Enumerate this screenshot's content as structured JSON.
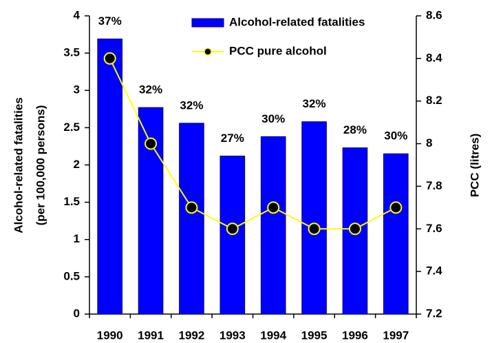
{
  "chart_data": {
    "type": "bar",
    "categories": [
      "1990",
      "1991",
      "1992",
      "1993",
      "1994",
      "1995",
      "1996",
      "1997"
    ],
    "series": [
      {
        "name": "Alcohol-related fatalities",
        "type": "bar",
        "color": "#0000ff",
        "values": [
          3.69,
          2.77,
          2.56,
          2.12,
          2.38,
          2.58,
          2.23,
          2.15
        ],
        "bar_labels": [
          "37%",
          "32%",
          "32%",
          "27%",
          "30%",
          "32%",
          "28%",
          "30%"
        ]
      },
      {
        "name": "PCC pure alcohol",
        "type": "line",
        "color": "#ffff00",
        "axis": "y2",
        "values": [
          8.4,
          8.0,
          7.7,
          7.6,
          7.7,
          7.6,
          7.6,
          7.7
        ]
      }
    ],
    "ylabel": [
      "Alcohol-related fatalities",
      "(per 100,000 persons)"
    ],
    "y2label": "PCC (litres)",
    "ylim": [
      0,
      4
    ],
    "yticks": [
      0,
      0.5,
      1,
      1.5,
      2,
      2.5,
      3,
      3.5,
      4
    ],
    "y2lim": [
      7.2,
      8.6
    ],
    "y2ticks": [
      7.2,
      7.4,
      7.6,
      7.8,
      8,
      8.2,
      8.4,
      8.6
    ],
    "legend": "upper right",
    "grid": false
  }
}
